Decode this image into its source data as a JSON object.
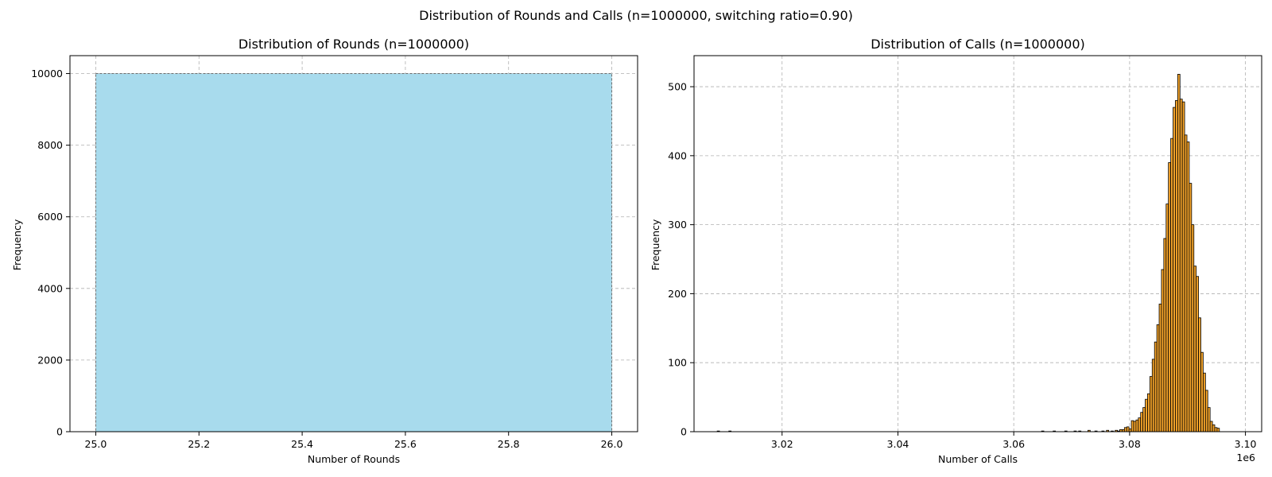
{
  "figure": {
    "suptitle": "Distribution of Rounds and Calls (n=1000000, switching ratio=0.90)"
  },
  "chart_data": [
    {
      "type": "bar",
      "title": "Distribution of Rounds (n=1000000)",
      "xlabel": "Number of Rounds",
      "ylabel": "Frequency",
      "xlim": [
        24.95,
        26.05
      ],
      "ylim": [
        0,
        10500
      ],
      "xticks": [
        "25.0",
        "25.2",
        "25.4",
        "25.6",
        "25.8",
        "26.0"
      ],
      "yticks": [
        "0",
        "2000",
        "4000",
        "6000",
        "8000",
        "10000"
      ],
      "grid": true,
      "color": "#a8dbed",
      "edgecolor": "#6d6d6d",
      "bins": [
        {
          "x0": 25.0,
          "x1": 26.0,
          "value": 10000
        }
      ]
    },
    {
      "type": "bar",
      "title": "Distribution of Calls (n=1000000)",
      "xlabel": "Number of Calls",
      "ylabel": "Frequency",
      "x_offset_label": "1e6",
      "xlim": [
        3.0048,
        3.1028
      ],
      "ylim": [
        0,
        545
      ],
      "xticks": [
        "3.02",
        "3.04",
        "3.06",
        "3.08",
        "3.10"
      ],
      "yticks": [
        "0",
        "100",
        "200",
        "300",
        "400",
        "500"
      ],
      "grid": true,
      "color": "#f3a32a",
      "edgecolor": "#000000",
      "bin_start": 3.0775,
      "bin_width": 0.0004,
      "values": [
        2,
        1,
        3,
        3,
        6,
        7,
        4,
        16,
        15,
        17,
        20,
        28,
        35,
        47,
        55,
        80,
        105,
        130,
        155,
        185,
        235,
        280,
        330,
        390,
        425,
        470,
        480,
        518,
        482,
        478,
        430,
        420,
        360,
        300,
        240,
        225,
        165,
        115,
        85,
        60,
        35,
        15,
        10,
        6,
        5
      ],
      "outliers": [
        {
          "x": 3.0088,
          "value": 1
        },
        {
          "x": 3.0108,
          "value": 1
        },
        {
          "x": 3.0648,
          "value": 1
        },
        {
          "x": 3.0668,
          "value": 1
        },
        {
          "x": 3.0688,
          "value": 1
        },
        {
          "x": 3.0704,
          "value": 1
        },
        {
          "x": 3.0712,
          "value": 1
        },
        {
          "x": 3.0728,
          "value": 2
        },
        {
          "x": 3.074,
          "value": 1
        },
        {
          "x": 3.0752,
          "value": 1
        },
        {
          "x": 3.076,
          "value": 2
        },
        {
          "x": 3.0768,
          "value": 1
        }
      ]
    }
  ]
}
